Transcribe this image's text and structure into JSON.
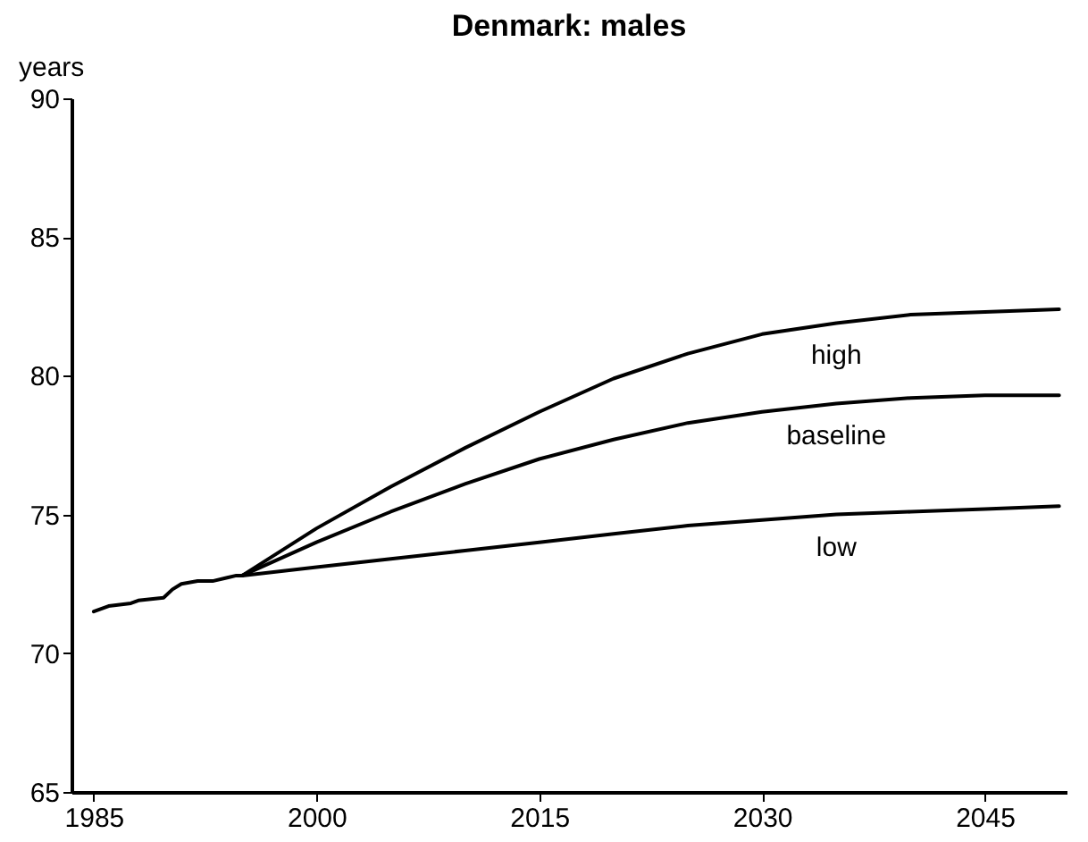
{
  "chart_data": {
    "type": "line",
    "title": "Denmark: males",
    "ylabel": "years",
    "xlim": [
      1983.5,
      2050.5
    ],
    "ylim": [
      65,
      90
    ],
    "xticks": [
      1985,
      2000,
      2015,
      2030,
      2045
    ],
    "yticks": [
      65,
      70,
      75,
      80,
      85,
      90
    ],
    "grid": false,
    "legend": false,
    "marker": "none",
    "line_style": "solid",
    "series": [
      {
        "name": "high",
        "color": "#000000",
        "x": [
          1995,
          2000,
          2005,
          2010,
          2015,
          2020,
          2025,
          2030,
          2035,
          2040,
          2045,
          2050
        ],
        "values": [
          72.8,
          74.5,
          76.0,
          77.4,
          78.7,
          79.9,
          80.8,
          81.5,
          81.9,
          82.2,
          82.3,
          82.4
        ]
      },
      {
        "name": "baseline",
        "color": "#000000",
        "x": [
          1985,
          1986,
          1987.5,
          1988,
          1989.7,
          1990.3,
          1990.9,
          1992,
          1993,
          1994.6,
          1995,
          2000,
          2005,
          2010,
          2015,
          2020,
          2025,
          2030,
          2035,
          2040,
          2045,
          2050
        ],
        "values": [
          71.5,
          71.7,
          71.8,
          71.9,
          72.0,
          72.3,
          72.5,
          72.6,
          72.6,
          72.8,
          72.8,
          74.0,
          75.1,
          76.1,
          77.0,
          77.7,
          78.3,
          78.7,
          79.0,
          79.2,
          79.3,
          79.3
        ]
      },
      {
        "name": "low",
        "color": "#000000",
        "x": [
          1995,
          2000,
          2005,
          2010,
          2015,
          2020,
          2025,
          2030,
          2035,
          2040,
          2045,
          2050
        ],
        "values": [
          72.8,
          73.1,
          73.4,
          73.7,
          74.0,
          74.3,
          74.6,
          74.8,
          75.0,
          75.1,
          75.2,
          75.3
        ]
      }
    ]
  }
}
